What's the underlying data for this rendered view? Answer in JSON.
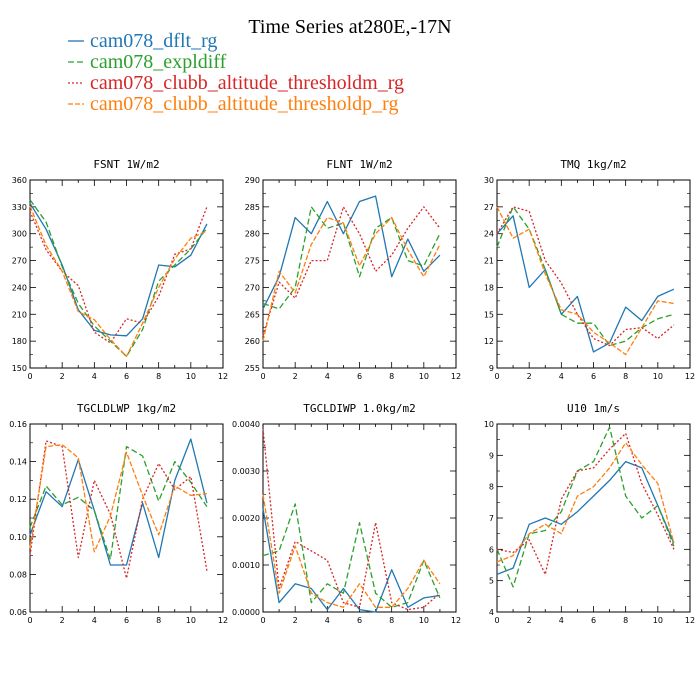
{
  "figure": {
    "title": "Time Series at280E,-17N"
  },
  "legend": [
    {
      "name": "cam078_dflt_rg",
      "color": "#1f77b4"
    },
    {
      "name": "cam078_expldiff",
      "color": "#2ca02c"
    },
    {
      "name": "cam078_clubb_altitude_thresholdm_rg",
      "color": "#d62728"
    },
    {
      "name": "cam078_clubb_altitude_thresholdp_rg",
      "color": "#ff7f0e"
    }
  ],
  "chart_data": [
    {
      "type": "line",
      "title": "FSNT   1W/m2",
      "x": [
        0,
        1,
        2,
        3,
        4,
        5,
        6,
        7,
        8,
        9,
        10,
        11
      ],
      "xlim": [
        0,
        12
      ],
      "xticks": [
        "0",
        "2",
        "4",
        "6",
        "8",
        "10",
        "12"
      ],
      "ylim": [
        150,
        360
      ],
      "yticks": [
        "150",
        "180",
        "210",
        "240",
        "270",
        "300",
        "330",
        "360"
      ],
      "series": [
        {
          "name": "cam078_dflt_rg",
          "values": [
            334,
            305,
            265,
            215,
            192,
            187,
            186,
            205,
            265,
            263,
            276,
            311
          ]
        },
        {
          "name": "cam078_expldiff",
          "values": [
            338,
            313,
            263,
            222,
            197,
            180,
            163,
            193,
            247,
            265,
            283,
            306
          ]
        },
        {
          "name": "cam078_clubb_altitude_thresholdm_rg",
          "values": [
            325,
            282,
            258,
            242,
            190,
            178,
            205,
            200,
            230,
            277,
            283,
            330
          ]
        },
        {
          "name": "cam078_clubb_altitude_thresholdp_rg",
          "values": [
            331,
            287,
            258,
            213,
            204,
            182,
            163,
            200,
            240,
            272,
            295,
            303
          ]
        }
      ]
    },
    {
      "type": "line",
      "title": "FLNT   1W/m2",
      "x": [
        0,
        1,
        2,
        3,
        4,
        5,
        6,
        7,
        8,
        9,
        10,
        11
      ],
      "xlim": [
        0,
        12
      ],
      "xticks": [
        "0",
        "2",
        "4",
        "6",
        "8",
        "10",
        "12"
      ],
      "ylim": [
        255,
        290
      ],
      "yticks": [
        "255",
        "260",
        "265",
        "270",
        "275",
        "280",
        "285",
        "290"
      ],
      "series": [
        {
          "name": "cam078_dflt_rg",
          "values": [
            266,
            272,
            283,
            280,
            286,
            280,
            286,
            287,
            272,
            279,
            273,
            276
          ]
        },
        {
          "name": "cam078_expldiff",
          "values": [
            267,
            266,
            270,
            285,
            281,
            282,
            272,
            281,
            283,
            275,
            274,
            280
          ]
        },
        {
          "name": "cam078_clubb_altitude_thresholdm_rg",
          "values": [
            261,
            271,
            268,
            275,
            275,
            285,
            280,
            273,
            276,
            281,
            285,
            281
          ]
        },
        {
          "name": "cam078_clubb_altitude_thresholdp_rg",
          "values": [
            260,
            273,
            269,
            278,
            283,
            282,
            274,
            280,
            283,
            277,
            272,
            278
          ]
        }
      ]
    },
    {
      "type": "line",
      "title": "TMQ   1kg/m2",
      "x": [
        0,
        1,
        2,
        3,
        4,
        5,
        6,
        7,
        8,
        9,
        10,
        11
      ],
      "xlim": [
        0,
        12
      ],
      "xticks": [
        "0",
        "2",
        "4",
        "6",
        "8",
        "10",
        "12"
      ],
      "ylim": [
        9,
        30
      ],
      "yticks": [
        "9",
        "12",
        "15",
        "18",
        "21",
        "24",
        "27",
        "30"
      ],
      "series": [
        {
          "name": "cam078_dflt_rg",
          "values": [
            24,
            26,
            18,
            20,
            15,
            17,
            10.8,
            11.8,
            15.8,
            14.3,
            17,
            17.8
          ]
        },
        {
          "name": "cam078_expldiff",
          "values": [
            22.5,
            27,
            24.5,
            20,
            15,
            14,
            14,
            11.5,
            12,
            13.5,
            14.5,
            15
          ]
        },
        {
          "name": "cam078_clubb_altitude_thresholdm_rg",
          "values": [
            24,
            27,
            26.5,
            21,
            18.5,
            15,
            12.3,
            11.5,
            13.3,
            13.5,
            12.3,
            13.8
          ]
        },
        {
          "name": "cam078_clubb_altitude_thresholdp_rg",
          "values": [
            27,
            23.5,
            24.5,
            19.5,
            15.5,
            15,
            13,
            11.8,
            10.5,
            13.5,
            16.5,
            16.2
          ]
        }
      ]
    },
    {
      "type": "line",
      "title": "TGCLDLWP   1kg/m2",
      "x": [
        0,
        1,
        2,
        3,
        4,
        5,
        6,
        7,
        8,
        9,
        10,
        11
      ],
      "xlim": [
        0,
        12
      ],
      "xticks": [
        "0",
        "2",
        "4",
        "6",
        "8",
        "10",
        "12"
      ],
      "ylim": [
        0.06,
        0.16
      ],
      "yticks": [
        "0.06",
        "0.08",
        "0.10",
        "0.12",
        "0.14",
        "0.16"
      ],
      "series": [
        {
          "name": "cam078_dflt_rg",
          "values": [
            0.101,
            0.124,
            0.116,
            0.141,
            0.114,
            0.085,
            0.085,
            0.118,
            0.089,
            0.13,
            0.152,
            0.118
          ]
        },
        {
          "name": "cam078_expldiff",
          "values": [
            0.105,
            0.127,
            0.117,
            0.121,
            0.114,
            0.088,
            0.148,
            0.143,
            0.119,
            0.14,
            0.129,
            0.116
          ]
        },
        {
          "name": "cam078_clubb_altitude_thresholdm_rg",
          "values": [
            0.09,
            0.151,
            0.148,
            0.089,
            0.13,
            0.112,
            0.078,
            0.12,
            0.139,
            0.125,
            0.132,
            0.082
          ]
        },
        {
          "name": "cam078_clubb_altitude_thresholdp_rg",
          "values": [
            0.094,
            0.148,
            0.149,
            0.142,
            0.092,
            0.111,
            0.145,
            0.122,
            0.101,
            0.127,
            0.122,
            0.123
          ]
        }
      ]
    },
    {
      "type": "line",
      "title": "TGCLDIWP   1.0kg/m2",
      "x": [
        0,
        1,
        2,
        3,
        4,
        5,
        6,
        7,
        8,
        9,
        10,
        11
      ],
      "xlim": [
        0,
        12
      ],
      "xticks": [
        "0",
        "2",
        "4",
        "6",
        "8",
        "10",
        "12"
      ],
      "ylim": [
        0,
        0.004
      ],
      "yticks": [
        "0.0000",
        "0.0010",
        "0.0020",
        "0.0030",
        "0.0040"
      ],
      "series": [
        {
          "name": "cam078_dflt_rg",
          "values": [
            0.0022,
            0.0002,
            0.0006,
            0.0005,
            5e-05,
            0.0005,
            5e-05,
            0.0,
            0.0009,
            0.0001,
            0.0003,
            0.00035
          ]
        },
        {
          "name": "cam078_expldiff",
          "values": [
            0.0012,
            0.0013,
            0.0023,
            0.0002,
            0.0006,
            0.0004,
            0.0019,
            0.0004,
            0.0001,
            0.0002,
            0.0011,
            0.0003
          ]
        },
        {
          "name": "cam078_clubb_altitude_thresholdm_rg",
          "values": [
            0.0039,
            0.0005,
            0.0015,
            0.0013,
            0.0011,
            0.0002,
            0.0001,
            0.0019,
            0.0002,
            5e-05,
            0.0001,
            0.0004
          ]
        },
        {
          "name": "cam078_clubb_altitude_thresholdp_rg",
          "values": [
            0.0025,
            0.0004,
            0.0014,
            0.0004,
            0.0002,
            0.0001,
            0.0006,
            0.0001,
            0.0001,
            0.0005,
            0.0011,
            0.0006
          ]
        }
      ]
    },
    {
      "type": "line",
      "title": "U10   1m/s",
      "x": [
        0,
        1,
        2,
        3,
        4,
        5,
        6,
        7,
        8,
        9,
        10,
        11
      ],
      "xlim": [
        0,
        12
      ],
      "xticks": [
        "0",
        "2",
        "4",
        "6",
        "8",
        "10",
        "12"
      ],
      "ylim": [
        4,
        10
      ],
      "yticks": [
        "4",
        "5",
        "6",
        "7",
        "8",
        "9",
        "10"
      ],
      "series": [
        {
          "name": "cam078_dflt_rg",
          "values": [
            5.2,
            5.4,
            6.8,
            7.0,
            6.8,
            7.2,
            7.7,
            8.2,
            8.8,
            8.6,
            7.4,
            6.2
          ]
        },
        {
          "name": "cam078_expldiff",
          "values": [
            6.0,
            4.8,
            6.5,
            6.6,
            7.2,
            8.5,
            8.8,
            9.9,
            7.7,
            7.0,
            7.4,
            6.1
          ]
        },
        {
          "name": "cam078_clubb_altitude_thresholdm_rg",
          "values": [
            6.0,
            5.9,
            6.3,
            5.2,
            7.6,
            8.5,
            8.6,
            9.2,
            9.7,
            8.1,
            7.1,
            6.0
          ]
        },
        {
          "name": "cam078_clubb_altitude_thresholdp_rg",
          "values": [
            5.6,
            5.8,
            6.5,
            6.8,
            6.5,
            7.7,
            8.0,
            8.6,
            9.4,
            8.7,
            8.1,
            6.2
          ]
        }
      ]
    }
  ]
}
